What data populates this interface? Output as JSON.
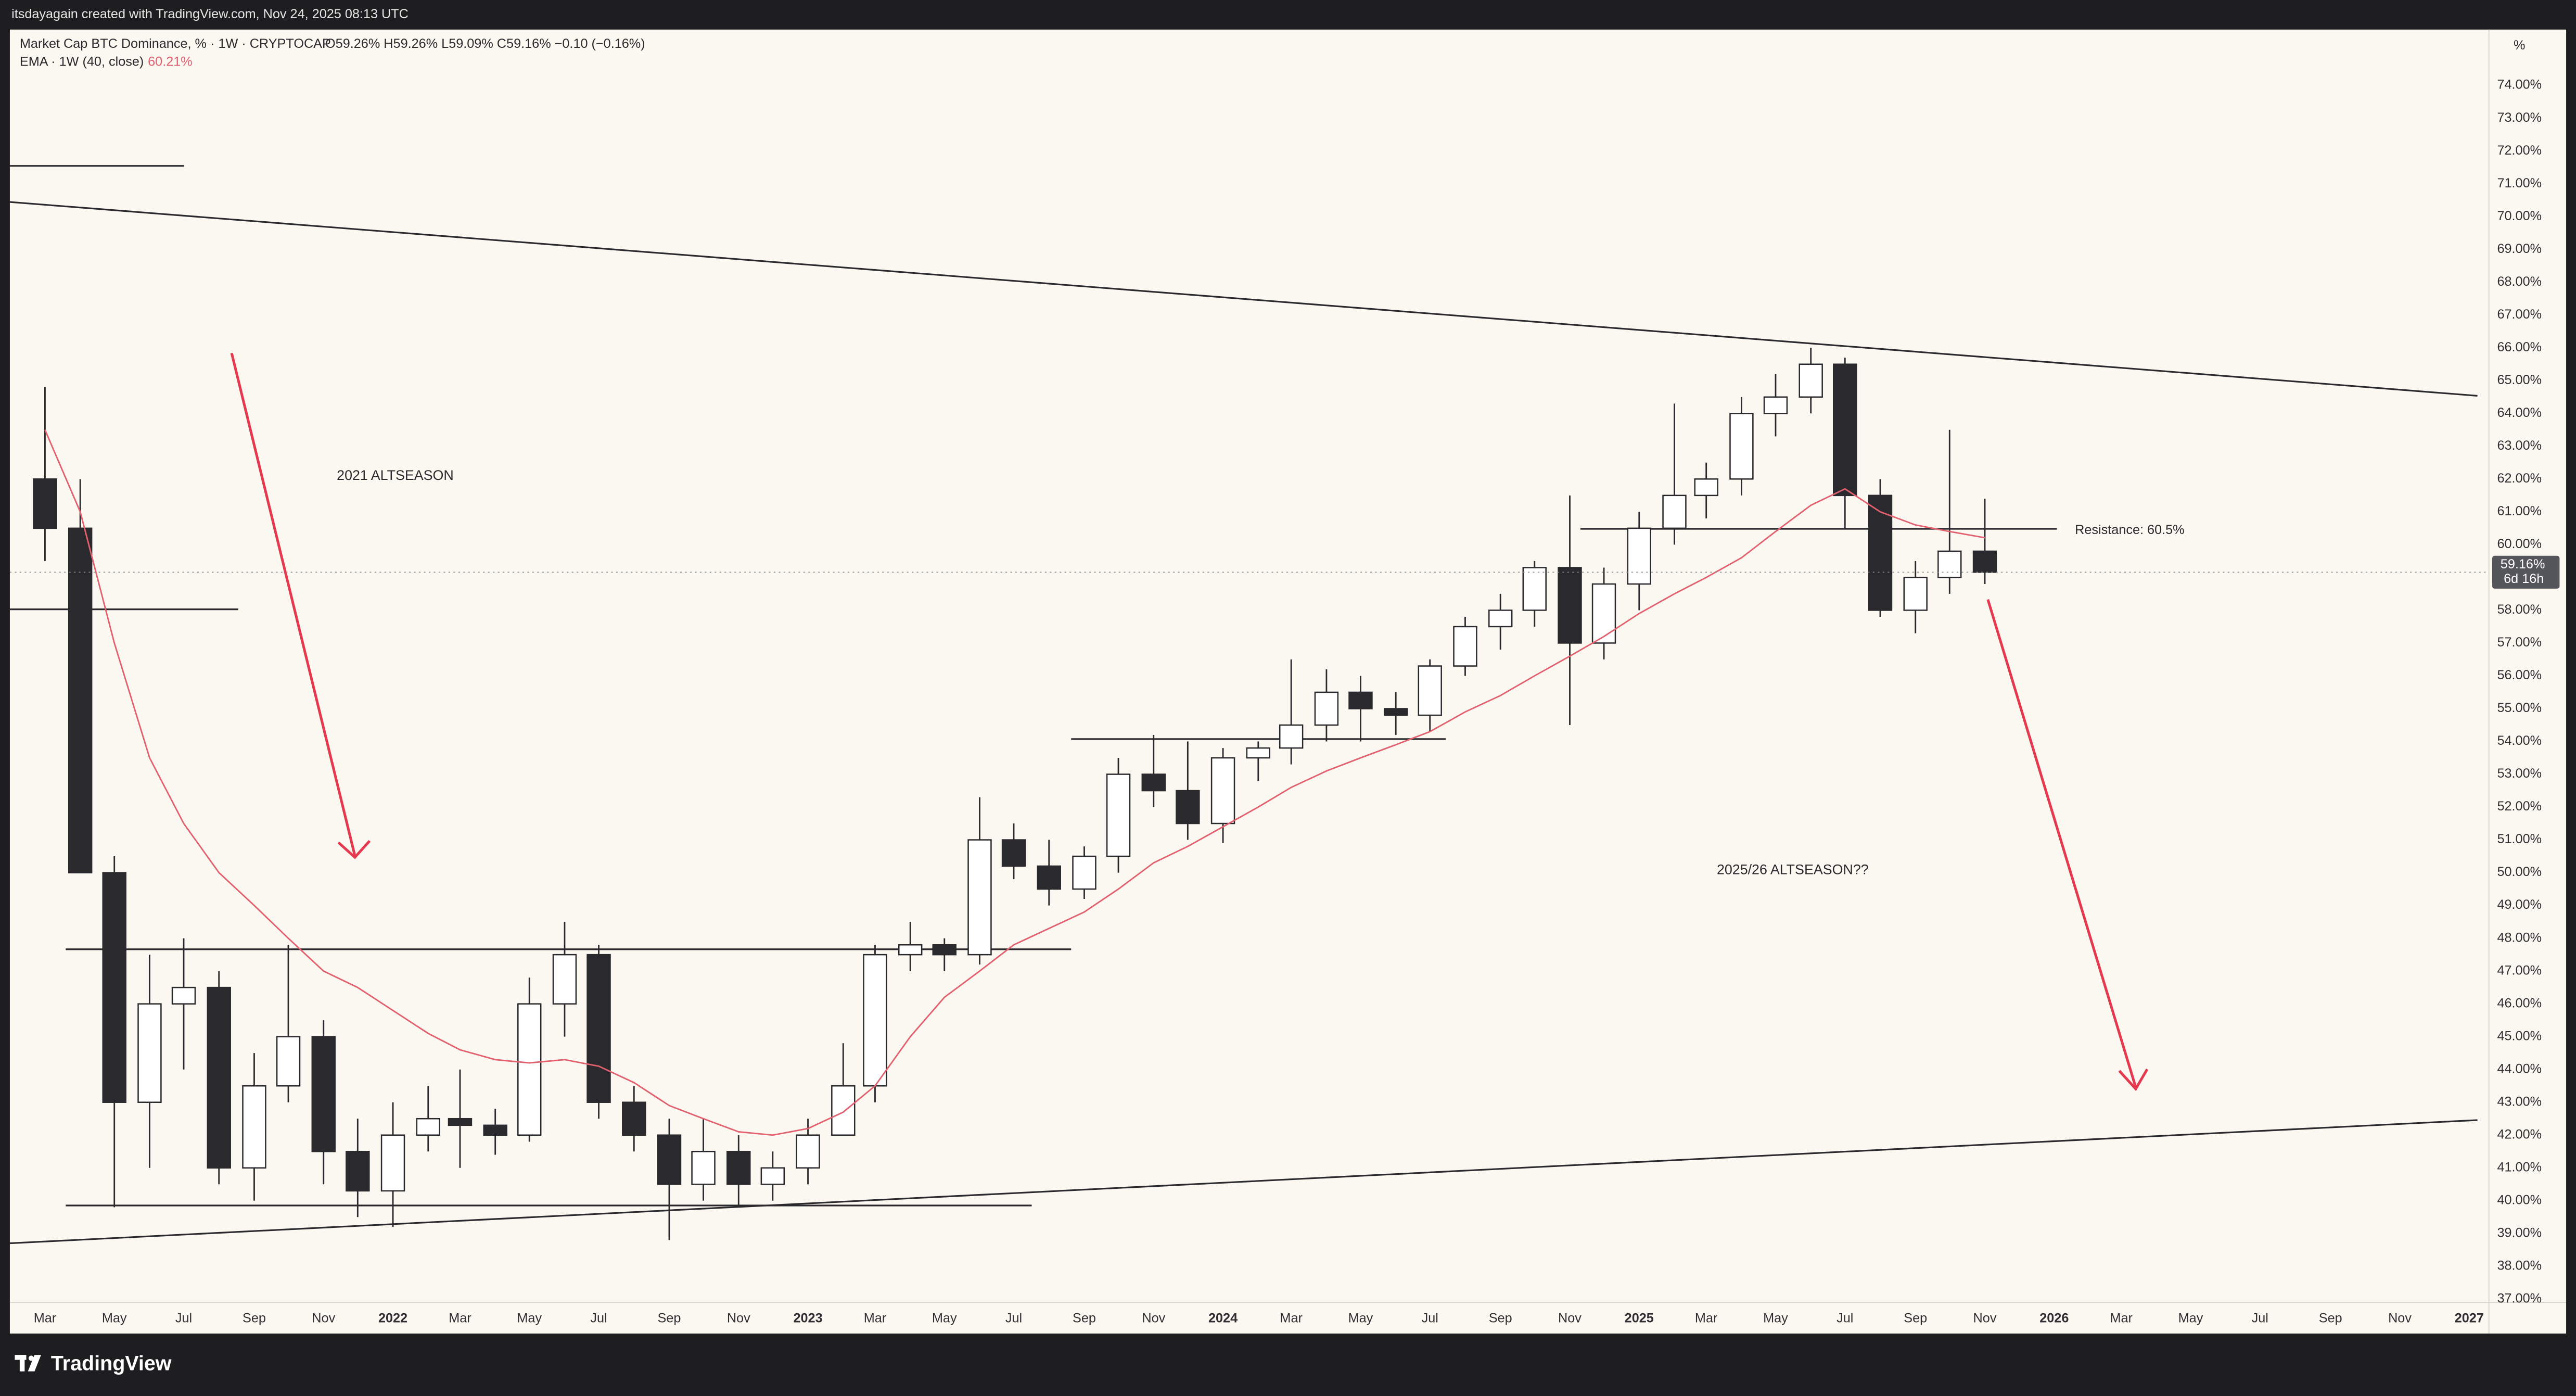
{
  "header": {
    "credit": "itsdayagain created with TradingView.com, Nov 24, 2025 08:13 UTC"
  },
  "footer": {
    "brand": "TradingView"
  },
  "chart_data": {
    "type": "candlestick",
    "title": "Market Cap BTC Dominance, % · 1W · CRYPTOCAP",
    "ohlc_text": "O59.26% H59.26% L59.09% C59.16% −0.10 (−0.16%)",
    "axis_unit": "%",
    "annotations": [
      "2021 ALTSEASON",
      "2025/26 ALTSEASON??",
      "Resistance: 60.5%"
    ],
    "last_price": {
      "value": 59.16,
      "label": "59.16%",
      "countdown": "6d 16h"
    },
    "x": [
      "2021-03",
      "2021-04",
      "2021-05",
      "2021-06",
      "2021-07",
      "2021-08",
      "2021-09",
      "2021-10",
      "2021-11",
      "2021-12",
      "2022-01",
      "2022-02",
      "2022-03",
      "2022-04",
      "2022-05",
      "2022-06",
      "2022-07",
      "2022-08",
      "2022-09",
      "2022-10",
      "2022-11",
      "2022-12",
      "2023-01",
      "2023-02",
      "2023-03",
      "2023-04",
      "2023-05",
      "2023-06",
      "2023-07",
      "2023-08",
      "2023-09",
      "2023-10",
      "2023-11",
      "2023-12",
      "2024-01",
      "2024-02",
      "2024-03",
      "2024-04",
      "2024-05",
      "2024-06",
      "2024-07",
      "2024-08",
      "2024-09",
      "2024-10",
      "2024-11",
      "2024-12",
      "2025-01",
      "2025-02",
      "2025-03",
      "2025-04",
      "2025-05",
      "2025-06",
      "2025-07",
      "2025-08",
      "2025-09",
      "2025-10",
      "2025-11"
    ],
    "open": [
      62,
      60.5,
      50,
      43,
      46,
      46.5,
      41,
      43.5,
      45,
      41.5,
      40.3,
      42,
      42.5,
      42.3,
      42,
      46,
      47.5,
      43,
      42,
      40.5,
      41.5,
      40.5,
      41,
      42,
      43.5,
      47.5,
      47.8,
      47.5,
      51,
      50.2,
      49.5,
      50.5,
      53,
      52.5,
      51.5,
      53.5,
      53.8,
      54.5,
      55.5,
      55,
      54.8,
      56.3,
      57.5,
      58,
      59.3,
      57,
      58.8,
      60.5,
      61.5,
      62,
      64,
      64.5,
      65.5,
      61.5,
      58,
      59,
      59.8
    ],
    "high": [
      64.8,
      62,
      50.5,
      47.5,
      48,
      47,
      44.5,
      47.8,
      45.5,
      42.5,
      43,
      43.5,
      44,
      42.8,
      46.8,
      48.5,
      47.8,
      43.5,
      42.5,
      42.5,
      42,
      41.5,
      42.5,
      44.8,
      47.8,
      48.5,
      48,
      52.3,
      51.5,
      51,
      50.8,
      53.5,
      54.2,
      54,
      53.8,
      54,
      56.5,
      56.2,
      56,
      55.5,
      56.5,
      57.8,
      58.5,
      59.5,
      61.5,
      59.3,
      61,
      64.3,
      62.5,
      64.5,
      65.2,
      66,
      65.7,
      62,
      59.5,
      63.5,
      61.4
    ],
    "low": [
      59.5,
      50,
      39.8,
      41,
      44,
      40.5,
      40,
      43,
      40.5,
      39.5,
      39.2,
      41.5,
      41,
      41.4,
      41.8,
      45,
      42.5,
      41.5,
      38.8,
      40,
      39.8,
      40,
      40.5,
      42,
      43,
      47,
      47,
      47.2,
      49.8,
      49,
      49.2,
      50,
      52,
      51,
      50.9,
      52.8,
      53.3,
      54,
      54,
      54.2,
      54.3,
      56,
      56.8,
      57.5,
      54.5,
      56.5,
      58,
      60,
      60.8,
      61.5,
      63.3,
      64,
      60.5,
      57.8,
      57.3,
      58.5,
      58.8
    ],
    "close": [
      60.5,
      50,
      43,
      46,
      46.5,
      41,
      43.5,
      45,
      41.5,
      40.3,
      42,
      42.5,
      42.3,
      42,
      46,
      47.5,
      43,
      42,
      40.5,
      41.5,
      40.5,
      41,
      42,
      43.5,
      47.5,
      47.8,
      47.5,
      51,
      50.2,
      49.5,
      50.5,
      53,
      52.5,
      51.5,
      53.5,
      53.8,
      54.5,
      55.5,
      55,
      54.8,
      56.3,
      57.5,
      58,
      59.3,
      57,
      58.8,
      60.5,
      61.5,
      62,
      64,
      64.5,
      65.5,
      61.5,
      58,
      59,
      59.8,
      59.16
    ],
    "up_color": "#ffffff",
    "down_color": "#2a2a2e",
    "series": [
      {
        "name": "EMA · 1W (40, close)",
        "value_label": "60.21%",
        "color": "#e3606f",
        "values": [
          63.5,
          61,
          57,
          53.5,
          51.5,
          50,
          49,
          48,
          47,
          46.5,
          45.8,
          45.1,
          44.6,
          44.3,
          44.2,
          44.3,
          44.1,
          43.6,
          42.9,
          42.5,
          42.1,
          42,
          42.2,
          42.7,
          43.5,
          45,
          46.2,
          47,
          47.8,
          48.3,
          48.8,
          49.5,
          50.3,
          50.8,
          51.4,
          52,
          52.6,
          53.1,
          53.5,
          53.9,
          54.3,
          54.9,
          55.4,
          56,
          56.6,
          57.2,
          57.9,
          58.5,
          59,
          59.6,
          60.4,
          61.2,
          61.7,
          61,
          60.6,
          60.4,
          60.21
        ]
      }
    ],
    "grid": false,
    "xlim": [
      "2021-02",
      "2027-01"
    ],
    "xticks": [
      {
        "value": "2021-03",
        "label": "Mar"
      },
      {
        "value": "2021-05",
        "label": "May"
      },
      {
        "value": "2021-07",
        "label": "Jul"
      },
      {
        "value": "2021-09",
        "label": "Sep"
      },
      {
        "value": "2021-11",
        "label": "Nov"
      },
      {
        "value": "2022-01",
        "label": "2022"
      },
      {
        "value": "2022-03",
        "label": "Mar"
      },
      {
        "value": "2022-05",
        "label": "May"
      },
      {
        "value": "2022-07",
        "label": "Jul"
      },
      {
        "value": "2022-09",
        "label": "Sep"
      },
      {
        "value": "2022-11",
        "label": "Nov"
      },
      {
        "value": "2023-01",
        "label": "2023"
      },
      {
        "value": "2023-03",
        "label": "Mar"
      },
      {
        "value": "2023-05",
        "label": "May"
      },
      {
        "value": "2023-07",
        "label": "Jul"
      },
      {
        "value": "2023-09",
        "label": "Sep"
      },
      {
        "value": "2023-11",
        "label": "Nov"
      },
      {
        "value": "2024-01",
        "label": "2024"
      },
      {
        "value": "2024-03",
        "label": "Mar"
      },
      {
        "value": "2024-05",
        "label": "May"
      },
      {
        "value": "2024-07",
        "label": "Jul"
      },
      {
        "value": "2024-09",
        "label": "Sep"
      },
      {
        "value": "2024-11",
        "label": "Nov"
      },
      {
        "value": "2025-01",
        "label": "2025"
      },
      {
        "value": "2025-03",
        "label": "Mar"
      },
      {
        "value": "2025-05",
        "label": "May"
      },
      {
        "value": "2025-07",
        "label": "Jul"
      },
      {
        "value": "2025-09",
        "label": "Sep"
      },
      {
        "value": "2025-11",
        "label": "Nov"
      },
      {
        "value": "2026-01",
        "label": "2026"
      },
      {
        "value": "2026-03",
        "label": "Mar"
      },
      {
        "value": "2026-05",
        "label": "May"
      },
      {
        "value": "2026-07",
        "label": "Jul"
      },
      {
        "value": "2026-09",
        "label": "Sep"
      },
      {
        "value": "2026-11",
        "label": "Nov"
      },
      {
        "value": "2027-01",
        "label": "2027"
      }
    ],
    "ylim": [
      37,
      74
    ],
    "yticks": [
      {
        "value": 37,
        "label": "37.00%"
      },
      {
        "value": 38,
        "label": "38.00%"
      },
      {
        "value": 39,
        "label": "39.00%"
      },
      {
        "value": 40,
        "label": "40.00%"
      },
      {
        "value": 41,
        "label": "41.00%"
      },
      {
        "value": 42,
        "label": "42.00%"
      },
      {
        "value": 43,
        "label": "43.00%"
      },
      {
        "value": 44,
        "label": "44.00%"
      },
      {
        "value": 45,
        "label": "45.00%"
      },
      {
        "value": 46,
        "label": "46.00%"
      },
      {
        "value": 47,
        "label": "47.00%"
      },
      {
        "value": 48,
        "label": "48.00%"
      },
      {
        "value": 49,
        "label": "49.00%"
      },
      {
        "value": 50,
        "label": "50.00%"
      },
      {
        "value": 51,
        "label": "51.00%"
      },
      {
        "value": 52,
        "label": "52.00%"
      },
      {
        "value": 53,
        "label": "53.00%"
      },
      {
        "value": 54,
        "label": "54.00%"
      },
      {
        "value": 55,
        "label": "55.00%"
      },
      {
        "value": 56,
        "label": "56.00%"
      },
      {
        "value": 57,
        "label": "57.00%"
      },
      {
        "value": 58,
        "label": "58.00%"
      },
      {
        "value": 59,
        "label": "59.00%"
      },
      {
        "value": 60,
        "label": "60.00%"
      },
      {
        "value": 61,
        "label": "61.00%"
      },
      {
        "value": 62,
        "label": "62.00%"
      },
      {
        "value": 63,
        "label": "63.00%"
      },
      {
        "value": 64,
        "label": "64.00%"
      },
      {
        "value": 65,
        "label": "65.00%"
      },
      {
        "value": 66,
        "label": "66.00%"
      },
      {
        "value": 67,
        "label": "67.00%"
      },
      {
        "value": 68,
        "label": "68.00%"
      },
      {
        "value": 69,
        "label": "69.00%"
      },
      {
        "value": 70,
        "label": "70.00%"
      },
      {
        "value": 71,
        "label": "71.00%"
      },
      {
        "value": 72,
        "label": "72.00%"
      },
      {
        "value": 73,
        "label": "73.00%"
      },
      {
        "value": 74,
        "label": "74.00%"
      }
    ]
  }
}
